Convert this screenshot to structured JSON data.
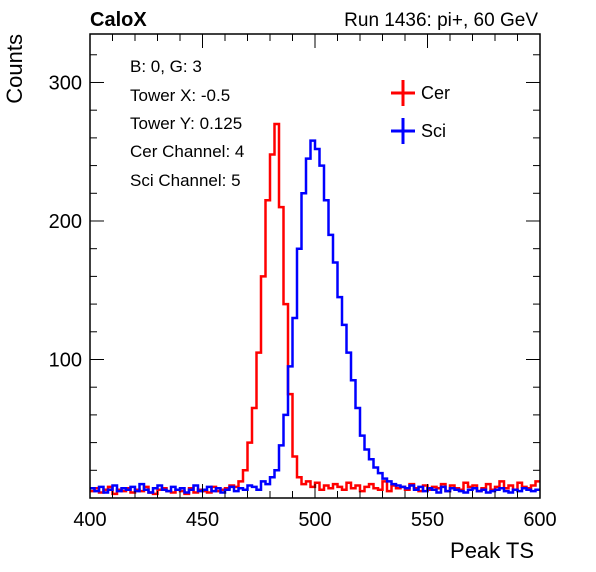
{
  "chart_data": {
    "type": "line",
    "title_left": "CaloX",
    "title_right": "Run 1436: pi+, 60 GeV",
    "xlabel": "Peak TS",
    "ylabel": "Counts",
    "xlim": [
      400,
      600
    ],
    "ylim": [
      0,
      335
    ],
    "x_ticks": [
      400,
      450,
      500,
      550,
      600
    ],
    "y_ticks": [
      100,
      200,
      300
    ],
    "info_lines": [
      "B: 0, G: 3",
      "Tower X: -0.5",
      "Tower Y: 0.125",
      "Cer Channel: 4",
      "Sci Channel: 5"
    ],
    "legend_position": "top-right",
    "series": [
      {
        "name": "Cer",
        "color": "#ff0000",
        "x": [
          400,
          402,
          404,
          406,
          408,
          410,
          412,
          414,
          416,
          418,
          420,
          422,
          424,
          426,
          428,
          430,
          432,
          434,
          436,
          438,
          440,
          442,
          444,
          446,
          448,
          450,
          452,
          454,
          456,
          458,
          460,
          462,
          464,
          466,
          468,
          470,
          472,
          474,
          476,
          478,
          480,
          482,
          484,
          486,
          488,
          490,
          492,
          494,
          496,
          498,
          500,
          502,
          504,
          506,
          508,
          510,
          512,
          514,
          516,
          518,
          520,
          522,
          524,
          526,
          528,
          530,
          532,
          534,
          536,
          538,
          540,
          542,
          544,
          546,
          548,
          550,
          552,
          554,
          556,
          558,
          560,
          562,
          564,
          566,
          568,
          570,
          572,
          574,
          576,
          578,
          580,
          582,
          584,
          586,
          588,
          590,
          592,
          594,
          596,
          598
        ],
        "values": [
          5,
          7,
          4,
          6,
          8,
          3,
          6,
          5,
          7,
          4,
          6,
          5,
          8,
          4,
          3,
          6,
          7,
          5,
          4,
          6,
          5,
          3,
          7,
          4,
          6,
          5,
          4,
          8,
          5,
          6,
          7,
          9,
          8,
          12,
          20,
          40,
          65,
          105,
          160,
          215,
          248,
          270,
          210,
          140,
          75,
          30,
          15,
          10,
          12,
          8,
          11,
          6,
          9,
          7,
          10,
          8,
          6,
          11,
          7,
          9,
          5,
          8,
          10,
          7,
          6,
          12,
          5,
          9,
          7,
          8,
          6,
          10,
          7,
          5,
          9,
          6,
          8,
          7,
          10,
          5,
          9,
          7,
          6,
          11,
          8,
          9,
          5,
          7,
          10,
          6,
          8,
          12,
          7,
          9,
          6,
          11,
          8,
          7,
          9,
          12
        ]
      },
      {
        "name": "Sci",
        "color": "#0000ff",
        "x": [
          400,
          402,
          404,
          406,
          408,
          410,
          412,
          414,
          416,
          418,
          420,
          422,
          424,
          426,
          428,
          430,
          432,
          434,
          436,
          438,
          440,
          442,
          444,
          446,
          448,
          450,
          452,
          454,
          456,
          458,
          460,
          462,
          464,
          466,
          468,
          470,
          472,
          474,
          476,
          478,
          480,
          482,
          484,
          486,
          488,
          490,
          492,
          494,
          496,
          498,
          500,
          502,
          504,
          506,
          508,
          510,
          512,
          514,
          516,
          518,
          520,
          522,
          524,
          526,
          528,
          530,
          532,
          534,
          536,
          538,
          540,
          542,
          544,
          546,
          548,
          550,
          552,
          554,
          556,
          558,
          560,
          562,
          564,
          566,
          568,
          570,
          572,
          574,
          576,
          578,
          580,
          582,
          584,
          586,
          588,
          590,
          592,
          594,
          596,
          598
        ],
        "values": [
          7,
          5,
          8,
          4,
          6,
          9,
          5,
          7,
          6,
          8,
          5,
          10,
          6,
          4,
          7,
          9,
          6,
          5,
          8,
          6,
          7,
          4,
          6,
          9,
          5,
          6,
          8,
          5,
          7,
          4,
          6,
          8,
          5,
          7,
          6,
          9,
          8,
          6,
          12,
          10,
          15,
          20,
          38,
          60,
          95,
          130,
          180,
          220,
          245,
          258,
          252,
          240,
          215,
          190,
          170,
          145,
          125,
          105,
          85,
          65,
          45,
          35,
          28,
          22,
          18,
          14,
          12,
          10,
          9,
          8,
          7,
          9,
          6,
          8,
          5,
          7,
          6,
          4,
          8,
          5,
          7,
          6,
          5,
          4,
          6,
          7,
          5,
          6,
          4,
          5,
          6,
          7,
          5,
          4,
          6,
          5,
          7,
          6,
          5,
          6
        ]
      }
    ]
  }
}
